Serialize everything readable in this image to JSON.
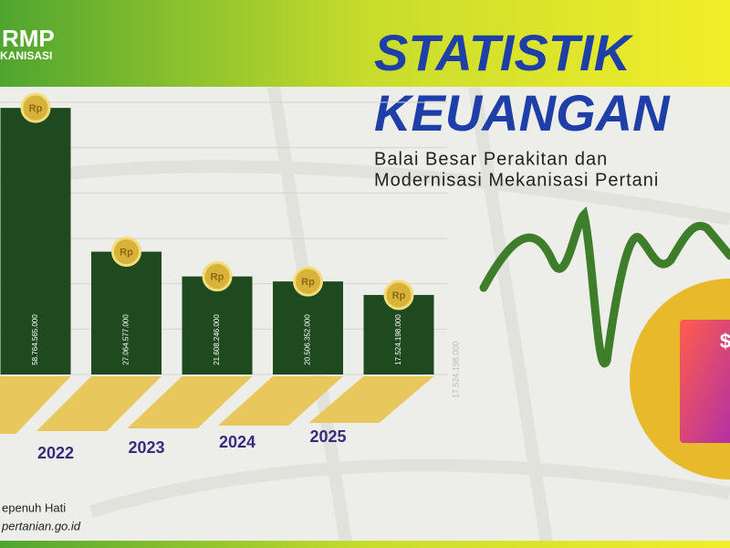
{
  "chart_data": {
    "type": "bar",
    "title": "STATISTIK",
    "title_line2": "KEUANGAN",
    "subtitle_lines": [
      "Balai Besar Perakitan dan",
      "Modernisasi Mekanisasi Pertani"
    ],
    "logo": "RMP",
    "logo_sub": "KANISASI",
    "footer_lines": [
      "epenuh Hati",
      "pertanian.go.id"
    ],
    "categories": [
      "2022",
      "2023",
      "2024",
      "2025",
      null
    ],
    "values": [
      58764565000,
      27064577000,
      21608246000,
      20506352000,
      17524198000
    ],
    "value_labels": [
      "58.764.565.000",
      "27.064.577.000",
      "21.608.246.000",
      "20.506.352.000",
      "17.524.198.000"
    ],
    "faded_label": "17.524.198.000",
    "coin_label": "Rp",
    "color": "#1f4a1f",
    "ylim": [
      0,
      60000000000
    ],
    "yticks": [
      0,
      10000000000,
      20000000000,
      30000000000,
      40000000000,
      50000000000,
      60000000000
    ],
    "grid": true
  }
}
